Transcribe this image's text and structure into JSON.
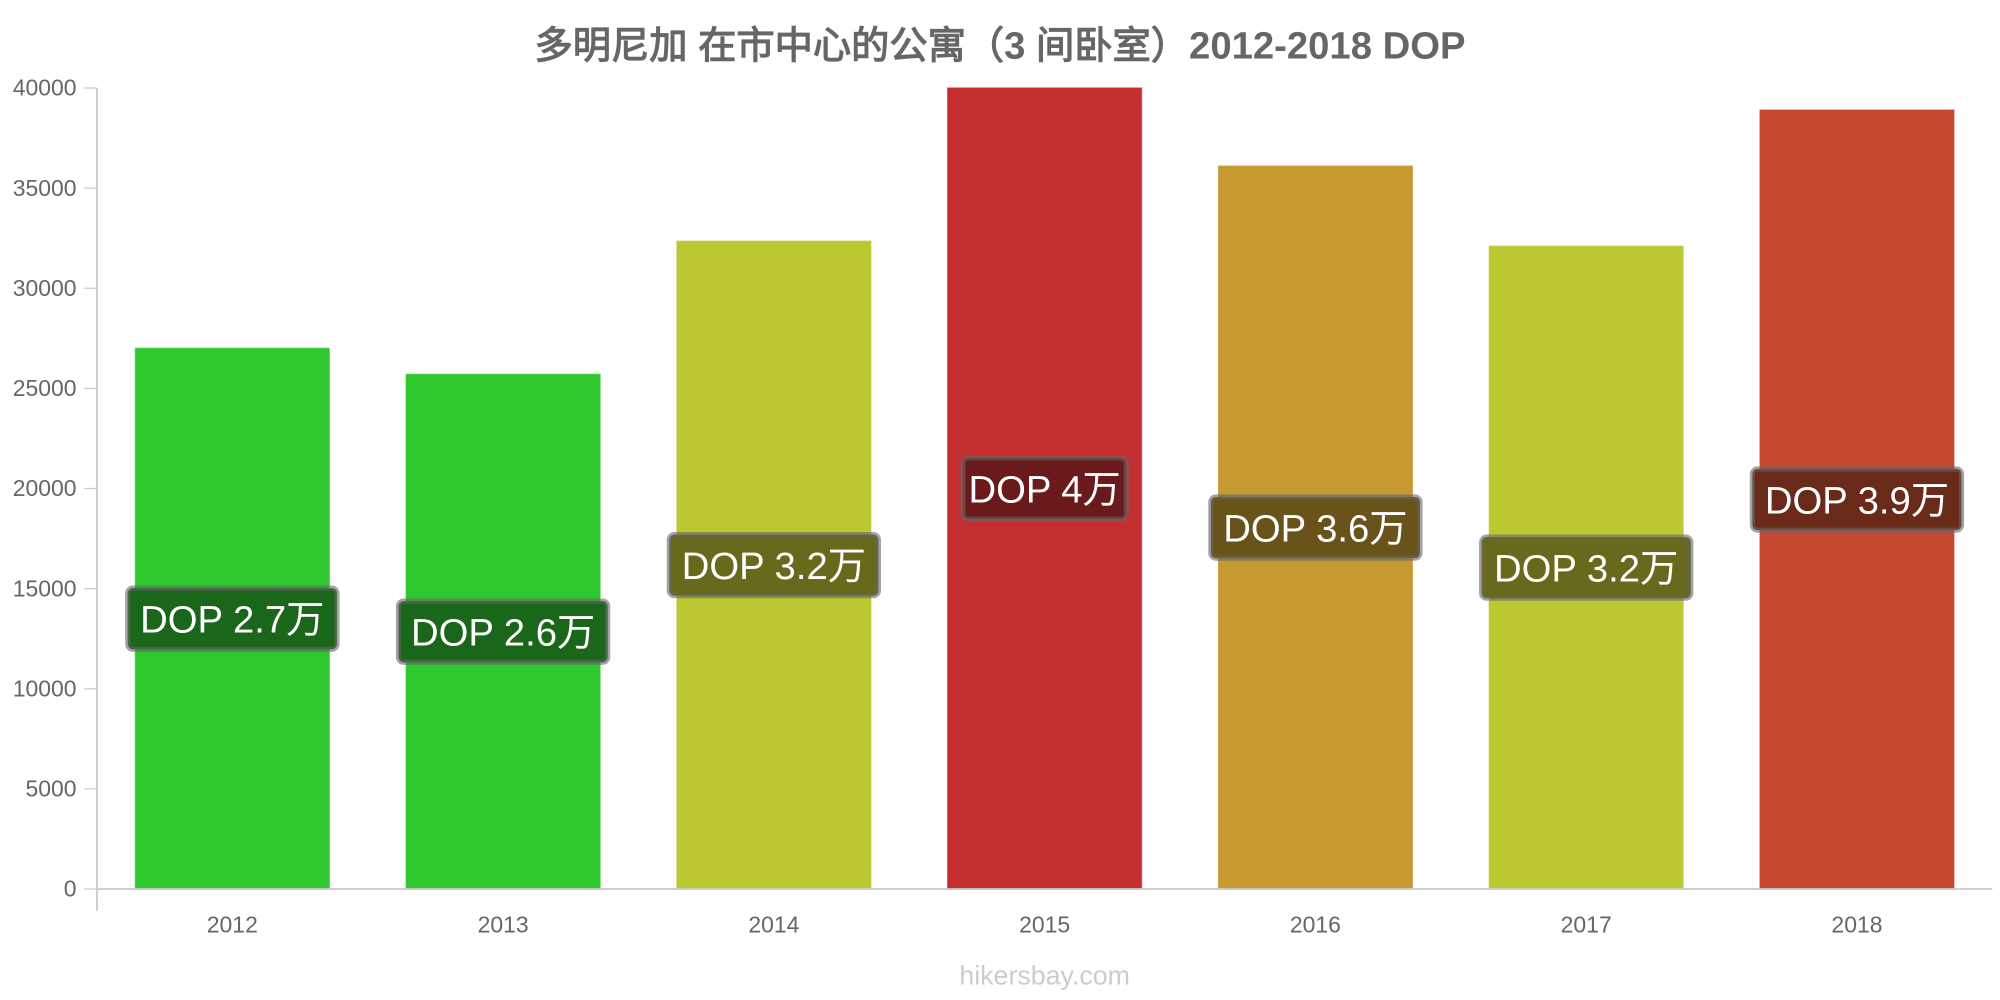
{
  "chart_data": {
    "type": "bar",
    "title": "多明尼加 在市中心的公寓（3 间卧室）2012-2018 DOP",
    "xlabel": "",
    "ylabel": "",
    "ylim": [
      0,
      40000
    ],
    "yticks": [
      "0",
      "5000",
      "10000",
      "15000",
      "20000",
      "25000",
      "30000",
      "35000",
      "40000"
    ],
    "categories": [
      "2012",
      "2013",
      "2014",
      "2015",
      "2016",
      "2017",
      "2018"
    ],
    "values": [
      27000,
      25700,
      32350,
      40000,
      36100,
      32100,
      38900
    ],
    "data_labels": [
      "DOP 2.7万",
      "DOP 2.6万",
      "DOP 3.2万",
      "DOP 4万",
      "DOP 3.6万",
      "DOP 3.2万",
      "DOP 3.9万"
    ],
    "bar_colors": [
      "#33dd33",
      "#33dd33",
      "#d0de36",
      "#da3333",
      "#dcaa36",
      "#d0de36",
      "#dc5036"
    ],
    "label_colors": [
      "#1a661a",
      "#1a661a",
      "#676a1c",
      "#6a1a1a",
      "#6a531a",
      "#676a1c",
      "#6a2a1a"
    ],
    "grid": false,
    "legend": "none"
  },
  "watermark": "hikersbay.com"
}
